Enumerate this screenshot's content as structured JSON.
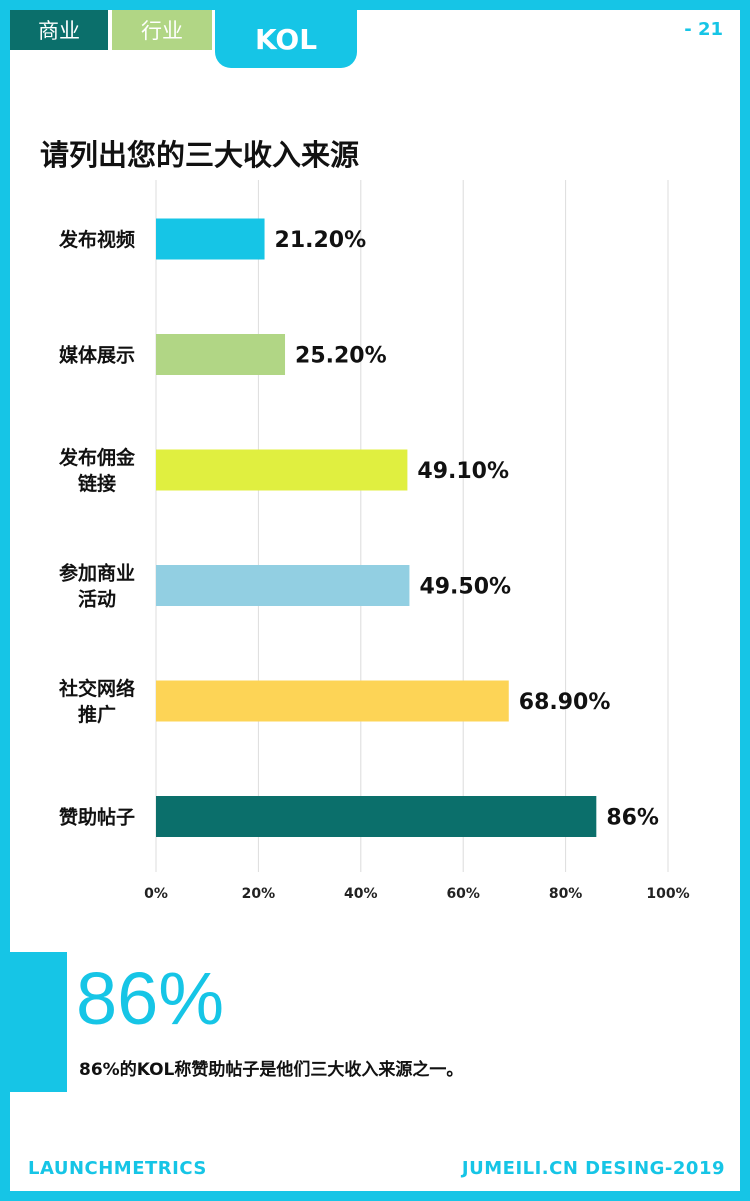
{
  "header": {
    "tabs": [
      {
        "label": "商业"
      },
      {
        "label": "行业"
      },
      {
        "label": "KOL"
      }
    ],
    "page_number": "- 21"
  },
  "colors": {
    "accent": "#16c5e6",
    "dark_teal": "#0b6f6b",
    "light_green": "#b1d685"
  },
  "chart_data": {
    "type": "bar",
    "orientation": "horizontal",
    "title": "请列出您的三大收入来源",
    "categories": [
      [
        "发布视频"
      ],
      [
        "媒体展示"
      ],
      [
        "发布佣金",
        "链接"
      ],
      [
        "参加商业",
        "活动"
      ],
      [
        "社交网络",
        "推广"
      ],
      [
        "赞助帖子"
      ]
    ],
    "values": [
      21.2,
      25.2,
      49.1,
      49.5,
      68.9,
      86
    ],
    "value_labels": [
      "21.20%",
      "25.20%",
      "49.10%",
      "49.50%",
      "68.90%",
      "86%"
    ],
    "bar_colors": [
      "#16c5e6",
      "#b1d685",
      "#e0ef40",
      "#92cfe2",
      "#fdd456",
      "#0b6f6b"
    ],
    "xlim": [
      0,
      100
    ],
    "x_ticks": [
      "0%",
      "20%",
      "40%",
      "60%",
      "80%",
      "100%"
    ],
    "grid": true
  },
  "highlight": {
    "stat": "86%",
    "caption": "86%的KOL称赞助帖子是他们三大收入来源之一。"
  },
  "footer": {
    "left": "LAUNCHMETRICS",
    "right": "JUMEILI.CN DESING-2019"
  }
}
